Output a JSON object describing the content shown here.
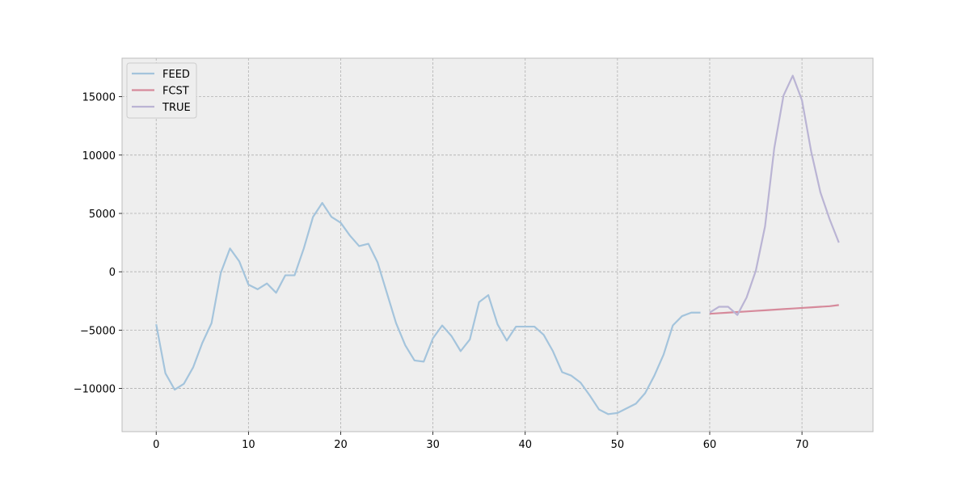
{
  "chart_data": {
    "type": "line",
    "title": "",
    "xlabel": "",
    "ylabel": "",
    "xlim": [
      -3.7,
      77.7
    ],
    "ylim": [
      -13700,
      18300
    ],
    "grid": true,
    "legend_position": "top-left",
    "x_ticks": [
      0,
      10,
      20,
      30,
      40,
      50,
      60,
      70
    ],
    "y_ticks": [
      -10000,
      -5000,
      0,
      5000,
      10000,
      15000
    ],
    "x_tick_labels": [
      "0",
      "10",
      "20",
      "30",
      "40",
      "50",
      "60",
      "70"
    ],
    "y_tick_labels": [
      "−10000",
      "−5000",
      "0",
      "5000",
      "10000",
      "15000"
    ],
    "series": [
      {
        "name": "FEED",
        "color": "#a4c4dc",
        "x_start": 0,
        "values": [
          -4500,
          -8700,
          -10100,
          -9600,
          -8200,
          -6100,
          -4400,
          -100,
          2000,
          900,
          -1100,
          -1500,
          -1000,
          -1800,
          -300,
          -300,
          2000,
          4700,
          5900,
          4700,
          4200,
          3100,
          2200,
          2400,
          800,
          -1800,
          -4400,
          -6300,
          -7600,
          -7700,
          -5700,
          -4600,
          -5500,
          -6800,
          -5800,
          -2600,
          -2000,
          -4500,
          -5900,
          -4700,
          -4700,
          -4700,
          -5400,
          -6800,
          -8600,
          -8900,
          -9500,
          -10600,
          -11800,
          -12200,
          -12100,
          -11700,
          -11300,
          -10400,
          -8900,
          -7100,
          -4600,
          -3800,
          -3500,
          -3500
        ]
      },
      {
        "name": "FCST",
        "color": "#d68a9b",
        "x_start": 60,
        "values": [
          -3600,
          -3550,
          -3500,
          -3450,
          -3400,
          -3350,
          -3300,
          -3250,
          -3200,
          -3150,
          -3100,
          -3050,
          -3000,
          -2950,
          -2850
        ]
      },
      {
        "name": "TRUE",
        "color": "#bab4d4",
        "x_start": 60,
        "values": [
          -3500,
          -3000,
          -3000,
          -3700,
          -2200,
          100,
          3900,
          10600,
          15100,
          16800,
          14700,
          10300,
          6800,
          4500,
          2500
        ]
      }
    ]
  }
}
